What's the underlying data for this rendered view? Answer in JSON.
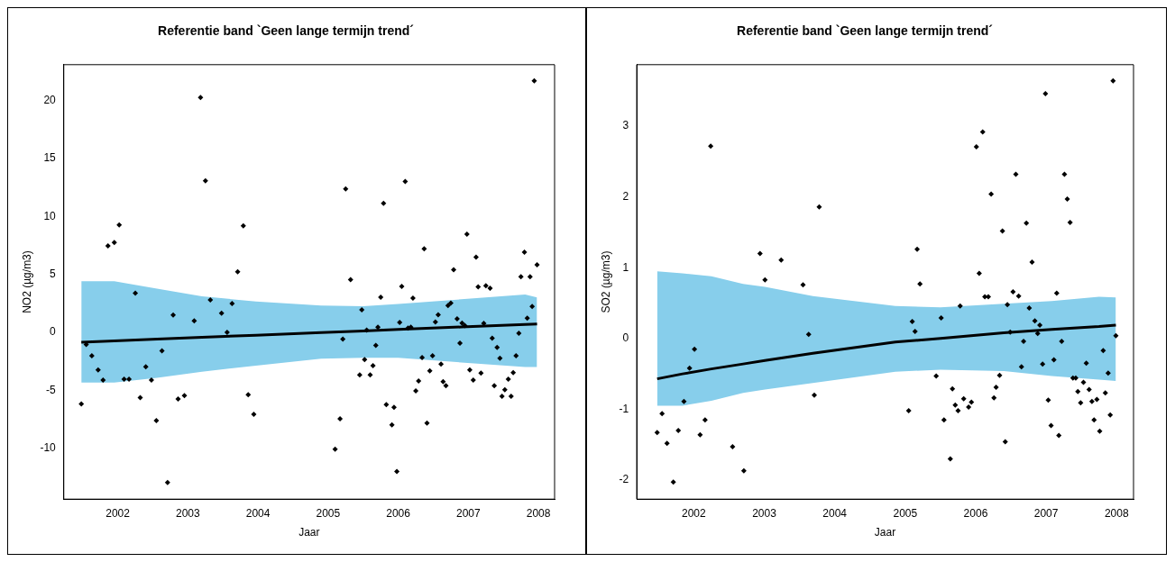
{
  "chart_data": [
    {
      "type": "scatter",
      "title": "Referentie band `Geen lange termijn trend´",
      "xlabel": "Jaar",
      "ylabel": "NO2 (µg/m3)",
      "xlim": [
        2001.23,
        2008.23
      ],
      "xticks": [
        2002,
        2003,
        2004,
        2005,
        2006,
        2007,
        2008
      ],
      "ylim": [
        -14.4,
        23.1
      ],
      "yticks": [
        -10,
        -5,
        0,
        5,
        10,
        15,
        20
      ],
      "grid": false,
      "legend": false,
      "marker": "diamond",
      "series": [
        {
          "type": "line",
          "marker": "none",
          "color": "#000000",
          "x": [
            2001.48,
            2001.95,
            2002.56,
            2003.2,
            2003.97,
            2004.9,
            2005.5,
            2006.0,
            2006.9,
            2007.81,
            2007.98
          ],
          "values": [
            -0.85,
            -0.74,
            -0.59,
            -0.43,
            -0.25,
            -0.02,
            0.12,
            0.24,
            0.46,
            0.68,
            0.72
          ],
          "lower": [
            -4.33,
            -4.33,
            -3.93,
            -3.4,
            -2.87,
            -2.28,
            -2.2,
            -2.2,
            -2.6,
            -3.0,
            -3.0
          ],
          "upper": [
            4.4,
            4.4,
            3.77,
            3.1,
            2.66,
            2.31,
            2.26,
            2.44,
            2.85,
            3.26,
            3.0
          ]
        },
        {
          "type": "scatter",
          "color": "#000000",
          "x": [
            2001.48,
            2001.55,
            2001.63,
            2001.72,
            2001.79,
            2001.86,
            2001.95,
            2002.02,
            2002.09,
            2002.16,
            2002.25,
            2002.32,
            2002.4,
            2002.48,
            2002.55,
            2002.63,
            2002.71,
            2002.79,
            2002.86,
            2002.95,
            2003.09,
            2003.18,
            2003.25,
            2003.32,
            2003.48,
            2003.56,
            2003.63,
            2003.71,
            2003.79,
            2003.86,
            2003.94,
            2005.1,
            2005.17,
            2005.21,
            2005.25,
            2005.32,
            2005.45,
            2005.48,
            2005.52,
            2005.55,
            2005.6,
            2005.64,
            2005.68,
            2005.71,
            2005.75,
            2005.79,
            2005.83,
            2005.91,
            2005.94,
            2005.98,
            2006.02,
            2006.05,
            2006.1,
            2006.14,
            2006.18,
            2006.21,
            2006.25,
            2006.29,
            2006.34,
            2006.37,
            2006.41,
            2006.45,
            2006.49,
            2006.53,
            2006.57,
            2006.61,
            2006.64,
            2006.68,
            2006.71,
            2006.75,
            2006.79,
            2006.84,
            2006.88,
            2006.91,
            2006.95,
            2006.98,
            2007.02,
            2007.07,
            2007.11,
            2007.14,
            2007.18,
            2007.22,
            2007.25,
            2007.31,
            2007.34,
            2007.37,
            2007.41,
            2007.45,
            2007.48,
            2007.52,
            2007.57,
            2007.61,
            2007.64,
            2007.68,
            2007.72,
            2007.75,
            2007.8,
            2007.84,
            2007.88,
            2007.91,
            2007.94,
            2007.98
          ],
          "values": [
            -6.19,
            -1.06,
            -2.02,
            -3.24,
            -4.12,
            7.46,
            7.75,
            9.27,
            -4.04,
            -4.04,
            3.37,
            -5.63,
            -2.97,
            -4.12,
            -7.62,
            -1.59,
            -12.96,
            1.49,
            -5.76,
            -5.47,
            0.98,
            20.26,
            13.07,
            2.79,
            1.65,
            0,
            2.49,
            5.23,
            9.19,
            -5.39,
            -7.07,
            -10.09,
            -7.46,
            -0.58,
            12.38,
            4.54,
            -3.67,
            1.94,
            -2.36,
            0.19,
            -3.67,
            -2.87,
            -1.14,
            0.45,
            3.03,
            11.13,
            -6.24,
            -7.99,
            -6.48,
            -12.01,
            0.85,
            3.96,
            13.01,
            0.37,
            0.45,
            2.95,
            -5.05,
            -4.2,
            -2.18,
            7.2,
            -7.83,
            -3.32,
            -2.02,
            0.9,
            1.51,
            -2.74,
            -4.25,
            -4.6,
            2.31,
            2.52,
            5.39,
            1.17,
            -0.93,
            0.8,
            0.58,
            8.47,
            -3.24,
            -4.12,
            6.48,
            3.93,
            -3.53,
            0.77,
            4.01,
            3.8,
            -0.5,
            -4.6,
            -1.3,
            -2.23,
            -5.52,
            -4.96,
            -4.04,
            -5.52,
            -3.48,
            -2.02,
            -0.08,
            4.8,
            6.91,
            1.22,
            4.8,
            2.23,
            21.7,
            5.82
          ]
        }
      ]
    },
    {
      "type": "scatter",
      "title": "Referentie band `Geen lange termijn trend´",
      "xlabel": "Jaar",
      "ylabel": "SO2 (µg/m3)",
      "xlim": [
        2001.19,
        2008.24
      ],
      "xticks": [
        2002,
        2003,
        2004,
        2005,
        2006,
        2007,
        2008
      ],
      "ylim": [
        -2.27,
        3.87
      ],
      "yticks": [
        -2,
        -1,
        0,
        1,
        2,
        3
      ],
      "grid": false,
      "legend": false,
      "marker": "diamond",
      "series": [
        {
          "type": "line",
          "marker": "none",
          "color": "#000000",
          "x": [
            2001.48,
            2001.84,
            2002.25,
            2002.7,
            2003.01,
            2003.69,
            2004.86,
            2005.5,
            2006.4,
            2007.08,
            2007.75,
            2007.99
          ],
          "values": [
            -0.57,
            -0.5,
            -0.43,
            -0.36,
            -0.31,
            -0.21,
            -0.05,
            0.0,
            0.08,
            0.13,
            0.17,
            0.19
          ],
          "lower": [
            -0.95,
            -0.95,
            -0.88,
            -0.77,
            -0.72,
            -0.63,
            -0.47,
            -0.44,
            -0.46,
            -0.53,
            -0.58,
            -0.6
          ],
          "upper": [
            0.95,
            0.92,
            0.88,
            0.77,
            0.73,
            0.6,
            0.46,
            0.44,
            0.49,
            0.53,
            0.59,
            0.58
          ]
        },
        {
          "type": "scatter",
          "color": "#000000",
          "x": [
            2001.48,
            2001.55,
            2001.62,
            2001.71,
            2001.78,
            2001.86,
            2001.94,
            2002.01,
            2002.09,
            2002.16,
            2002.24,
            2002.55,
            2002.71,
            2002.94,
            2003.01,
            2003.24,
            2003.55,
            2003.63,
            2003.71,
            2003.78,
            2005.05,
            2005.1,
            2005.14,
            2005.17,
            2005.21,
            2005.44,
            2005.51,
            2005.55,
            2005.64,
            2005.67,
            2005.71,
            2005.75,
            2005.78,
            2005.83,
            2005.9,
            2005.94,
            2006.01,
            2006.05,
            2006.1,
            2006.13,
            2006.18,
            2006.22,
            2006.26,
            2006.29,
            2006.34,
            2006.38,
            2006.42,
            2006.45,
            2006.49,
            2006.53,
            2006.57,
            2006.61,
            2006.65,
            2006.68,
            2006.72,
            2006.76,
            2006.8,
            2006.84,
            2006.88,
            2006.91,
            2006.95,
            2006.99,
            2007.03,
            2007.07,
            2007.11,
            2007.15,
            2007.18,
            2007.22,
            2007.26,
            2007.3,
            2007.34,
            2007.38,
            2007.42,
            2007.45,
            2007.49,
            2007.53,
            2007.57,
            2007.61,
            2007.65,
            2007.68,
            2007.72,
            2007.76,
            2007.81,
            2007.84,
            2007.88,
            2007.91,
            2007.95,
            2007.99
          ],
          "values": [
            -1.33,
            -1.06,
            -1.48,
            -2.03,
            -1.3,
            -0.89,
            -0.42,
            -0.15,
            -1.36,
            -1.15,
            2.72,
            -1.53,
            -1.87,
            1.2,
            0.83,
            1.11,
            0.76,
            0.06,
            -0.8,
            1.86,
            -1.02,
            0.24,
            0.1,
            1.26,
            0.77,
            -0.53,
            0.29,
            -1.15,
            -1.7,
            -0.71,
            -0.94,
            -1.02,
            0.46,
            -0.85,
            -0.97,
            -0.9,
            2.71,
            0.92,
            2.92,
            0.59,
            0.59,
            2.04,
            -0.84,
            -0.69,
            -0.52,
            1.52,
            -1.46,
            0.48,
            0.09,
            0.66,
            2.32,
            0.6,
            -0.4,
            -0.04,
            1.63,
            0.43,
            1.08,
            0.25,
            0.07,
            0.19,
            -0.36,
            3.46,
            -0.87,
            -1.23,
            -0.3,
            0.64,
            -1.37,
            -0.04,
            2.32,
            1.97,
            1.64,
            -0.56,
            -0.56,
            -0.75,
            -0.91,
            -0.62,
            -0.35,
            -0.72,
            -0.89,
            -1.15,
            -0.86,
            -1.31,
            -0.17,
            -0.77,
            -0.49,
            -1.08,
            3.64,
            0.04
          ]
        }
      ]
    }
  ]
}
